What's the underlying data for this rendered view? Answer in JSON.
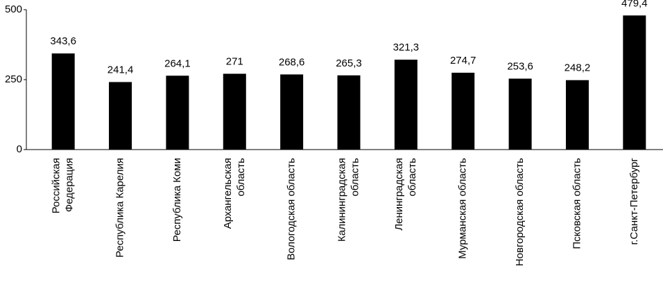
{
  "chart_data": {
    "type": "bar",
    "categories": [
      "Российская\nФедерация",
      "Республика Карелия",
      "Республика Коми",
      "Архангельская\nобласть",
      "Вологодская область",
      "Калининградская\nобласть",
      "Ленинградская\nобласть",
      "Мурманская область",
      "Новгородская область",
      "Псковская область",
      "г.Санкт-Петербург"
    ],
    "values": [
      343.6,
      241.4,
      264.1,
      271,
      268.6,
      265.3,
      321.3,
      274.7,
      253.6,
      248.2,
      479.4
    ],
    "value_labels": [
      "343,6",
      "241,4",
      "264,1",
      "271",
      "268,6",
      "265,3",
      "321,3",
      "274,7",
      "253,6",
      "248,2",
      "479,4"
    ],
    "color": "#000000",
    "ylim": [
      0,
      500
    ],
    "yticks": [
      0,
      250,
      500
    ]
  }
}
